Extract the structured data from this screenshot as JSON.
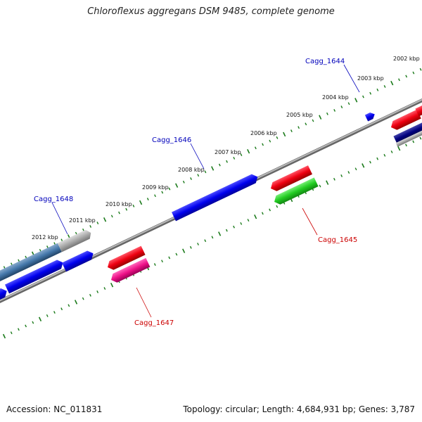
{
  "title": "Chloroflexus aggregans DSM 9485, complete genome",
  "footer": {
    "accession": "Accession: NC_011831",
    "topology": "Topology: circular; Length: 4,684,931 bp; Genes: 3,787"
  },
  "scale_labels": [
    "2002 kbp",
    "2003 kbp",
    "2004 kbp",
    "2005 kbp",
    "2006 kbp",
    "2007 kbp",
    "2008 kbp",
    "2009 kbp",
    "2010 kbp",
    "2011 kbp",
    "2012 kbp"
  ],
  "gene_labels": [
    {
      "text": "Cagg_1644",
      "strand": "plus",
      "color": "#0000bb"
    },
    {
      "text": "Cagg_1646",
      "strand": "plus",
      "color": "#0000bb"
    },
    {
      "text": "Cagg_1648",
      "strand": "plus",
      "color": "#0000bb"
    },
    {
      "text": "Cagg_1645",
      "strand": "minus",
      "color": "#cc0000"
    },
    {
      "text": "Cagg_1647",
      "strand": "minus",
      "color": "#cc0000"
    }
  ],
  "colors": {
    "backbone": "#8a8a8a",
    "tick": "#1a7a1a",
    "cds": "#0000ee",
    "rna": "#e8001a",
    "green_feature": "#22cc22",
    "pink_feature": "#ee1188",
    "steel_feature": "#4477aa",
    "grey_feature": "#aaaaaa",
    "navy_feature": "#000080"
  }
}
